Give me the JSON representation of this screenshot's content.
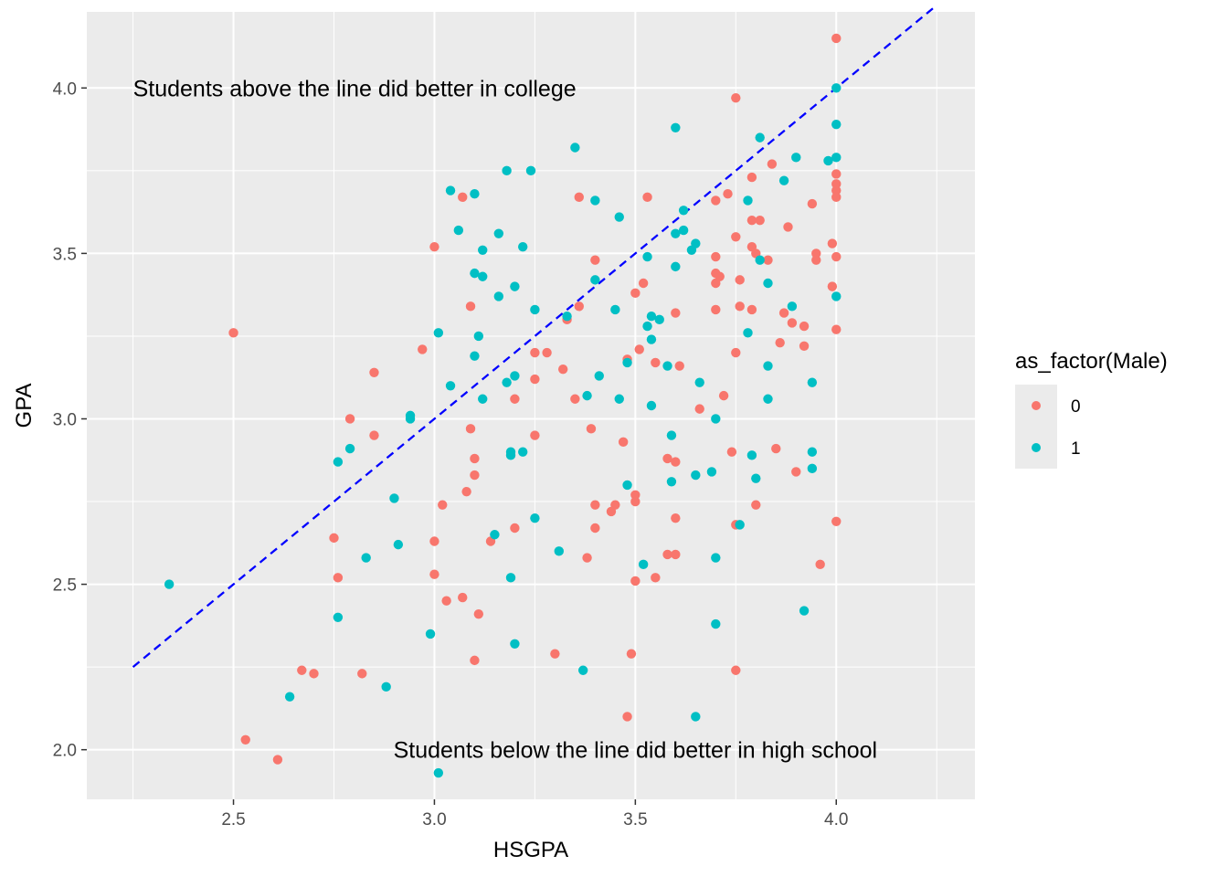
{
  "chart_data": {
    "type": "scatter",
    "xlabel": "HSGPA",
    "ylabel": "GPA",
    "xlim": [
      2.135,
      4.345
    ],
    "ylim": [
      1.85,
      4.23
    ],
    "x_ticks": [
      2.5,
      3.0,
      3.5,
      4.0
    ],
    "y_ticks": [
      2.0,
      2.5,
      3.0,
      3.5,
      4.0
    ],
    "x_tick_labels": [
      "2.5",
      "3.0",
      "3.5",
      "4.0"
    ],
    "y_tick_labels": [
      "2.0",
      "2.5",
      "3.0",
      "3.5",
      "4.0"
    ],
    "grid": true,
    "legend": {
      "title": "as_factor(Male)",
      "placement": "right",
      "entries": [
        "0",
        "1"
      ]
    },
    "reference_line": {
      "style": "dashed",
      "color": "#0000ff",
      "x": [
        2.25,
        4.25
      ],
      "y": [
        2.25,
        4.25
      ]
    },
    "annotations": [
      {
        "text": "Students above the line did better in college",
        "x": 2.25,
        "y": 4.0,
        "anchor": "start"
      },
      {
        "text": "Students below the line did better in high school",
        "x": 3.5,
        "y": 2.0,
        "anchor": "middle"
      }
    ],
    "colors": {
      "0": "#f8766d",
      "1": "#00bfc4"
    },
    "series": [
      {
        "name": "0",
        "points": [
          [
            4.0,
            4.15
          ],
          [
            3.75,
            3.97
          ],
          [
            3.84,
            3.77
          ],
          [
            3.79,
            3.73
          ],
          [
            4.0,
            3.74
          ],
          [
            4.0,
            3.71
          ],
          [
            4.0,
            3.69
          ],
          [
            4.0,
            3.67
          ],
          [
            3.73,
            3.68
          ],
          [
            3.7,
            3.66
          ],
          [
            3.53,
            3.67
          ],
          [
            3.36,
            3.67
          ],
          [
            3.07,
            3.67
          ],
          [
            3.94,
            3.65
          ],
          [
            3.79,
            3.6
          ],
          [
            3.81,
            3.6
          ],
          [
            3.88,
            3.58
          ],
          [
            3.75,
            3.55
          ],
          [
            3.99,
            3.53
          ],
          [
            3.0,
            3.52
          ],
          [
            3.79,
            3.52
          ],
          [
            3.8,
            3.5
          ],
          [
            3.95,
            3.5
          ],
          [
            3.95,
            3.48
          ],
          [
            4.0,
            3.49
          ],
          [
            3.7,
            3.49
          ],
          [
            3.83,
            3.48
          ],
          [
            3.4,
            3.48
          ],
          [
            3.7,
            3.44
          ],
          [
            3.71,
            3.43
          ],
          [
            3.76,
            3.42
          ],
          [
            3.52,
            3.41
          ],
          [
            3.7,
            3.41
          ],
          [
            3.99,
            3.4
          ],
          [
            3.5,
            3.38
          ],
          [
            3.36,
            3.34
          ],
          [
            3.76,
            3.34
          ],
          [
            3.09,
            3.34
          ],
          [
            3.79,
            3.33
          ],
          [
            3.7,
            3.33
          ],
          [
            3.6,
            3.32
          ],
          [
            3.87,
            3.32
          ],
          [
            3.33,
            3.3
          ],
          [
            3.89,
            3.29
          ],
          [
            3.92,
            3.28
          ],
          [
            4.0,
            3.27
          ],
          [
            2.5,
            3.26
          ],
          [
            3.86,
            3.23
          ],
          [
            3.92,
            3.22
          ],
          [
            2.97,
            3.21
          ],
          [
            3.51,
            3.21
          ],
          [
            3.75,
            3.2
          ],
          [
            3.25,
            3.2
          ],
          [
            3.28,
            3.2
          ],
          [
            3.48,
            3.18
          ],
          [
            3.55,
            3.17
          ],
          [
            3.61,
            3.16
          ],
          [
            3.32,
            3.15
          ],
          [
            2.85,
            3.14
          ],
          [
            3.25,
            3.12
          ],
          [
            3.72,
            3.07
          ],
          [
            3.35,
            3.06
          ],
          [
            3.2,
            3.06
          ],
          [
            3.66,
            3.03
          ],
          [
            2.79,
            3.0
          ],
          [
            3.39,
            2.97
          ],
          [
            3.09,
            2.97
          ],
          [
            2.85,
            2.95
          ],
          [
            3.25,
            2.95
          ],
          [
            3.47,
            2.93
          ],
          [
            3.85,
            2.91
          ],
          [
            3.74,
            2.9
          ],
          [
            3.58,
            2.88
          ],
          [
            3.1,
            2.88
          ],
          [
            3.6,
            2.87
          ],
          [
            3.9,
            2.84
          ],
          [
            3.1,
            2.83
          ],
          [
            3.08,
            2.78
          ],
          [
            3.5,
            2.77
          ],
          [
            3.5,
            2.75
          ],
          [
            3.02,
            2.74
          ],
          [
            3.4,
            2.74
          ],
          [
            3.45,
            2.74
          ],
          [
            3.8,
            2.74
          ],
          [
            3.44,
            2.72
          ],
          [
            3.6,
            2.7
          ],
          [
            4.0,
            2.69
          ],
          [
            3.75,
            2.68
          ],
          [
            3.4,
            2.67
          ],
          [
            3.2,
            2.67
          ],
          [
            2.75,
            2.64
          ],
          [
            3.14,
            2.63
          ],
          [
            3.0,
            2.63
          ],
          [
            3.58,
            2.59
          ],
          [
            3.6,
            2.59
          ],
          [
            3.38,
            2.58
          ],
          [
            3.96,
            2.56
          ],
          [
            3.0,
            2.53
          ],
          [
            2.76,
            2.52
          ],
          [
            3.55,
            2.52
          ],
          [
            3.5,
            2.51
          ],
          [
            3.07,
            2.46
          ],
          [
            3.03,
            2.45
          ],
          [
            3.11,
            2.41
          ],
          [
            3.3,
            2.29
          ],
          [
            3.49,
            2.29
          ],
          [
            3.1,
            2.27
          ],
          [
            2.67,
            2.24
          ],
          [
            3.75,
            2.24
          ],
          [
            2.7,
            2.23
          ],
          [
            2.82,
            2.23
          ],
          [
            3.48,
            2.1
          ],
          [
            2.53,
            2.03
          ],
          [
            2.61,
            1.97
          ]
        ]
      },
      {
        "name": "1",
        "points": [
          [
            4.0,
            4.0
          ],
          [
            3.6,
            3.88
          ],
          [
            4.0,
            3.89
          ],
          [
            3.81,
            3.85
          ],
          [
            3.35,
            3.82
          ],
          [
            4.0,
            3.79
          ],
          [
            3.9,
            3.79
          ],
          [
            3.98,
            3.78
          ],
          [
            3.18,
            3.75
          ],
          [
            3.24,
            3.75
          ],
          [
            3.87,
            3.72
          ],
          [
            3.04,
            3.69
          ],
          [
            3.1,
            3.68
          ],
          [
            3.78,
            3.66
          ],
          [
            3.4,
            3.66
          ],
          [
            3.62,
            3.63
          ],
          [
            3.46,
            3.61
          ],
          [
            3.06,
            3.57
          ],
          [
            3.62,
            3.57
          ],
          [
            3.16,
            3.56
          ],
          [
            3.6,
            3.56
          ],
          [
            3.65,
            3.53
          ],
          [
            3.22,
            3.52
          ],
          [
            3.12,
            3.51
          ],
          [
            3.64,
            3.51
          ],
          [
            3.53,
            3.49
          ],
          [
            3.81,
            3.48
          ],
          [
            3.6,
            3.46
          ],
          [
            3.1,
            3.44
          ],
          [
            3.12,
            3.43
          ],
          [
            3.4,
            3.42
          ],
          [
            3.83,
            3.41
          ],
          [
            3.2,
            3.4
          ],
          [
            3.16,
            3.37
          ],
          [
            4.0,
            3.37
          ],
          [
            3.89,
            3.34
          ],
          [
            3.25,
            3.33
          ],
          [
            3.45,
            3.33
          ],
          [
            3.33,
            3.31
          ],
          [
            3.54,
            3.31
          ],
          [
            3.56,
            3.3
          ],
          [
            3.53,
            3.28
          ],
          [
            3.01,
            3.26
          ],
          [
            3.78,
            3.26
          ],
          [
            3.11,
            3.25
          ],
          [
            3.54,
            3.24
          ],
          [
            3.1,
            3.19
          ],
          [
            3.48,
            3.17
          ],
          [
            3.58,
            3.16
          ],
          [
            3.83,
            3.16
          ],
          [
            3.41,
            3.13
          ],
          [
            3.2,
            3.13
          ],
          [
            3.18,
            3.11
          ],
          [
            3.66,
            3.11
          ],
          [
            3.94,
            3.11
          ],
          [
            3.04,
            3.1
          ],
          [
            3.38,
            3.07
          ],
          [
            3.12,
            3.06
          ],
          [
            3.46,
            3.06
          ],
          [
            3.83,
            3.06
          ],
          [
            3.54,
            3.04
          ],
          [
            2.94,
            3.01
          ],
          [
            2.94,
            3.0
          ],
          [
            3.7,
            3.0
          ],
          [
            3.59,
            2.95
          ],
          [
            2.79,
            2.91
          ],
          [
            3.19,
            2.9
          ],
          [
            3.22,
            2.9
          ],
          [
            3.94,
            2.9
          ],
          [
            3.19,
            2.89
          ],
          [
            3.79,
            2.89
          ],
          [
            2.76,
            2.87
          ],
          [
            3.94,
            2.85
          ],
          [
            3.69,
            2.84
          ],
          [
            3.65,
            2.83
          ],
          [
            3.8,
            2.82
          ],
          [
            3.59,
            2.81
          ],
          [
            3.48,
            2.8
          ],
          [
            2.9,
            2.76
          ],
          [
            3.25,
            2.7
          ],
          [
            3.76,
            2.68
          ],
          [
            3.15,
            2.65
          ],
          [
            2.91,
            2.62
          ],
          [
            3.31,
            2.6
          ],
          [
            2.83,
            2.58
          ],
          [
            3.7,
            2.58
          ],
          [
            3.52,
            2.56
          ],
          [
            3.19,
            2.52
          ],
          [
            2.34,
            2.5
          ],
          [
            3.92,
            2.42
          ],
          [
            2.76,
            2.4
          ],
          [
            3.7,
            2.38
          ],
          [
            2.99,
            2.35
          ],
          [
            3.2,
            2.32
          ],
          [
            3.37,
            2.24
          ],
          [
            2.88,
            2.19
          ],
          [
            2.64,
            2.16
          ],
          [
            3.65,
            2.1
          ],
          [
            3.01,
            1.93
          ]
        ]
      }
    ]
  }
}
